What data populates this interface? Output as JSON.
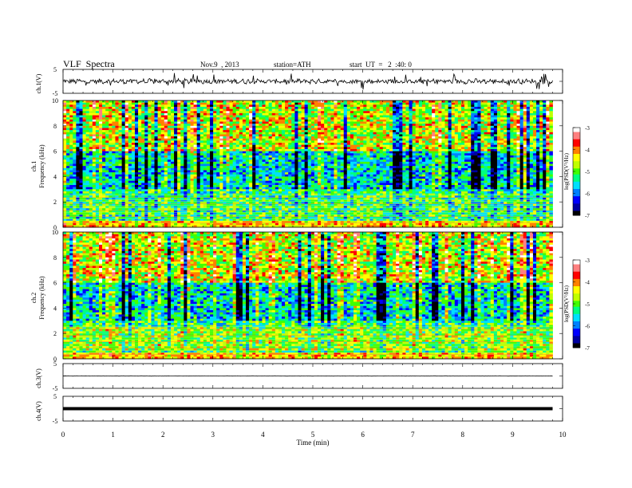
{
  "header": {
    "title": "VLF  Spectra",
    "date": "Nov.9  , 2013",
    "station": "station=ATH",
    "start_ut": "start  UT  =   2  :40: 0"
  },
  "chart_data": [
    {
      "type": "line",
      "name_label": "ch.1(V)",
      "ylim": [
        -5,
        5
      ],
      "yticks": [
        "5",
        "-5"
      ],
      "description_level": "noisy waveform around 0 with spikes"
    },
    {
      "type": "heatmap",
      "ylabel": "ch.1\nFrequency (kHz)",
      "ylabel_lines": [
        "ch.1",
        "Frequency  (kHz)"
      ],
      "ylim": [
        0,
        10
      ],
      "yticks": [
        "0",
        "2",
        "4",
        "6",
        "8",
        "10"
      ],
      "colorbar": {
        "label": "log(PSD(V²/Hz)",
        "range": [
          -7,
          -3
        ],
        "ticks": [
          "-3",
          "-4",
          "-5",
          "-6",
          "-7"
        ]
      }
    },
    {
      "type": "heatmap",
      "ylabel_lines": [
        "ch.2",
        "Frequency  (kHz)"
      ],
      "ylim": [
        0,
        10
      ],
      "yticks": [
        "0",
        "2",
        "4",
        "6",
        "8",
        "10"
      ],
      "colorbar": {
        "label": "log(PSD(V²/Hz)",
        "range": [
          -7,
          -3
        ],
        "ticks": [
          "-3",
          "-4",
          "-5",
          "-6",
          "-7"
        ]
      }
    },
    {
      "type": "line",
      "name_label": "ch.3(V)",
      "ylim": [
        -5,
        5
      ],
      "yticks": [
        "5",
        "-5"
      ]
    },
    {
      "type": "line",
      "name_label": "ch.4(V)",
      "ylim": [
        -5,
        5
      ],
      "yticks": [
        "5",
        "-5"
      ]
    }
  ],
  "xaxis": {
    "label": "Time  (min)",
    "range": [
      0,
      10
    ],
    "ticks": [
      "0",
      "1",
      "2",
      "3",
      "4",
      "5",
      "6",
      "7",
      "8",
      "9",
      "10"
    ],
    "data_end": 9.8
  },
  "colors": {
    "jet": [
      "#000000",
      "#0000a0",
      "#0000ff",
      "#0080ff",
      "#00e0ff",
      "#00ff80",
      "#40ff00",
      "#c0ff00",
      "#ffff00",
      "#ff8000",
      "#ff0000",
      "#ff8080",
      "#ffffff"
    ]
  }
}
